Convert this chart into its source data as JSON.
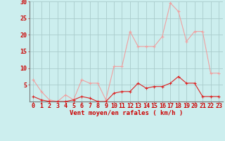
{
  "hours": [
    0,
    1,
    2,
    3,
    4,
    5,
    6,
    7,
    8,
    9,
    10,
    11,
    12,
    13,
    14,
    15,
    16,
    17,
    18,
    19,
    20,
    21,
    22,
    23
  ],
  "wind_avg": [
    1.5,
    0.5,
    0.0,
    0.0,
    0.0,
    0.5,
    1.5,
    1.0,
    0.0,
    0.0,
    2.5,
    3.0,
    3.0,
    5.5,
    4.0,
    4.5,
    4.5,
    5.5,
    7.5,
    5.5,
    5.5,
    1.5,
    1.5,
    1.5
  ],
  "wind_gust": [
    6.5,
    3.0,
    0.5,
    0.0,
    2.0,
    0.5,
    6.5,
    5.5,
    5.5,
    0.5,
    10.5,
    10.5,
    21.0,
    16.5,
    16.5,
    16.5,
    19.5,
    29.5,
    27.0,
    18.0,
    21.0,
    21.0,
    8.5,
    8.5
  ],
  "color_avg": "#dd2222",
  "color_gust": "#f0a0a0",
  "bg_color": "#cceeee",
  "grid_color": "#aacccc",
  "text_color": "#cc0000",
  "ylim": [
    0,
    30
  ],
  "yticks": [
    0,
    5,
    10,
    15,
    20,
    25,
    30
  ],
  "xlabel": "Vent moyen/en rafales ( km/h )",
  "label_fontsize": 6.5,
  "tick_fontsize": 6.0
}
